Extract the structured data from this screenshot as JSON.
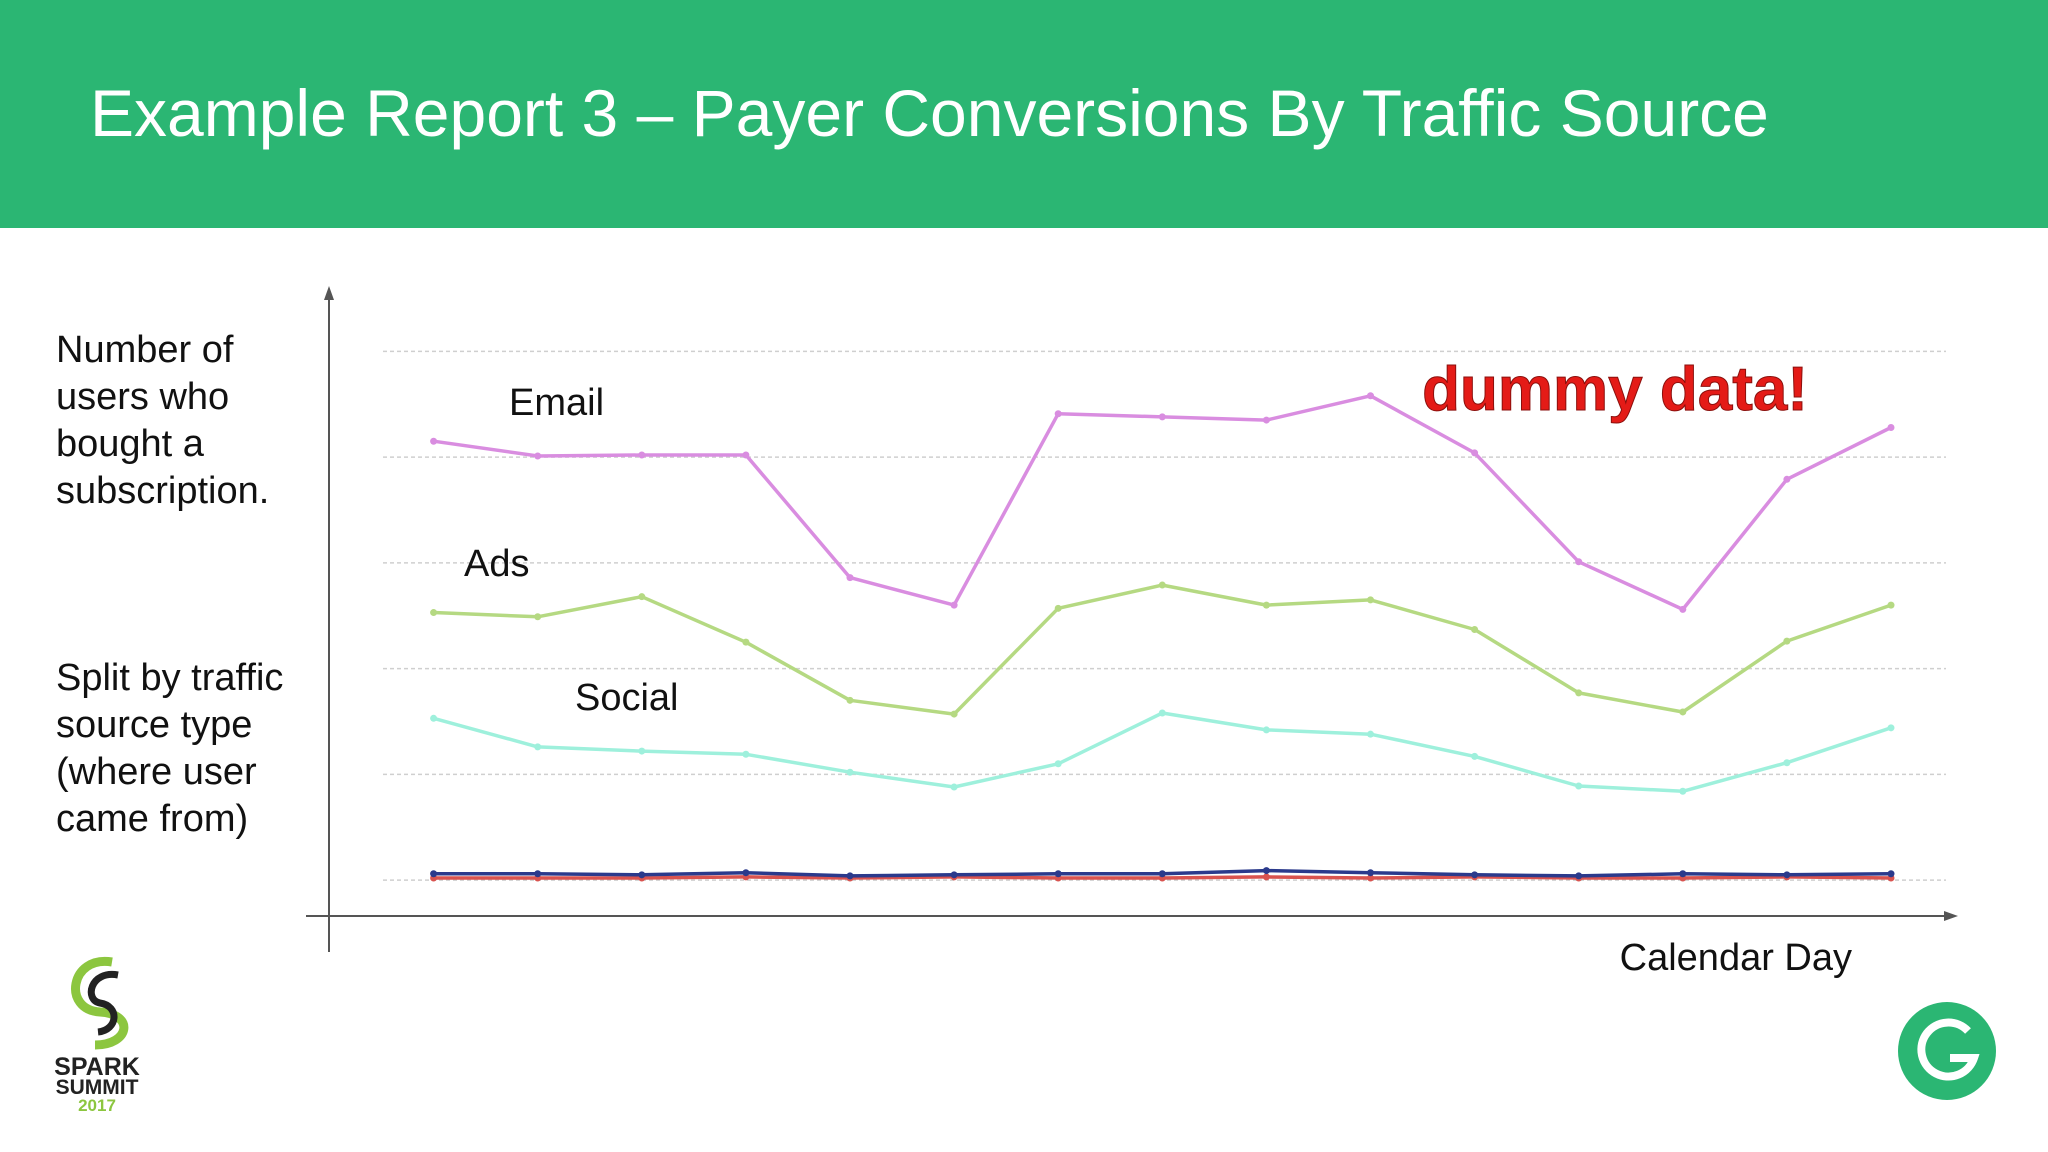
{
  "slide": {
    "title": "Example Report 3 – Payer Conversions By Traffic Source",
    "note_1": [
      "Number of",
      "users who",
      "bought a",
      "subscription."
    ],
    "note_2": [
      "Split by traffic",
      "source type",
      "(where user",
      "came from)"
    ],
    "logo": [
      "SPARK",
      "SUMMIT",
      "2017"
    ]
  },
  "chart_data": {
    "type": "line",
    "x_label": "Calendar Day",
    "annotation": "dummy data!",
    "categories": [
      null,
      null,
      null,
      null,
      null,
      null,
      null,
      null,
      null,
      null,
      null,
      null,
      null,
      null,
      null
    ],
    "ylim": [
      -0.33,
      5.58
    ],
    "yticks": [
      0,
      1,
      2,
      3,
      4,
      5
    ],
    "grid": true,
    "series": [
      {
        "name": "Email",
        "color": "#d98de0",
        "values": [
          4.15,
          4.01,
          4.02,
          4.02,
          2.86,
          2.6,
          4.41,
          4.38,
          4.35,
          4.58,
          4.04,
          3.01,
          2.56,
          3.79,
          4.28
        ]
      },
      {
        "name": "Ads",
        "color": "#b5d982",
        "values": [
          2.53,
          2.49,
          2.68,
          2.25,
          1.7,
          1.57,
          2.57,
          2.79,
          2.6,
          2.65,
          2.37,
          1.77,
          1.59,
          2.26,
          2.6
        ]
      },
      {
        "name": "Social",
        "color": "#9ef0dc",
        "values": [
          1.53,
          1.26,
          1.22,
          1.19,
          1.02,
          0.88,
          1.1,
          1.58,
          1.42,
          1.38,
          1.17,
          0.89,
          0.84,
          1.11,
          1.44
        ]
      },
      {
        "color": "#d9534f",
        "values": [
          0.02,
          0.02,
          0.02,
          0.03,
          0.02,
          0.03,
          0.02,
          0.02,
          0.03,
          0.02,
          0.03,
          0.02,
          0.02,
          0.03,
          0.02
        ]
      },
      {
        "color": "#2b3a8c",
        "values": [
          0.06,
          0.06,
          0.05,
          0.07,
          0.04,
          0.05,
          0.06,
          0.06,
          0.09,
          0.07,
          0.05,
          0.04,
          0.06,
          0.05,
          0.06
        ]
      }
    ]
  }
}
